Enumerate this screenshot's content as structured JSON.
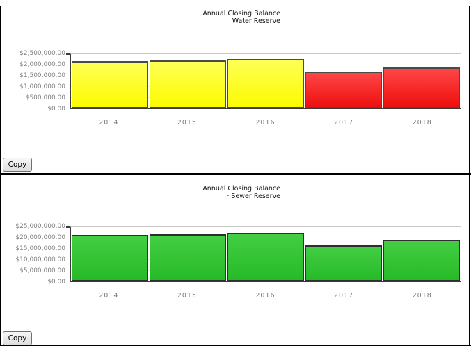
{
  "ui": {
    "copy_button_label": "Copy"
  },
  "palette": {
    "yellow": {
      "top": "#ffff55",
      "bottom": "#fbfb00",
      "border": "#4a4a4a"
    },
    "red": {
      "top": "#ff4646",
      "bottom": "#ee0f0f",
      "border": "#4a4a4a"
    },
    "green": {
      "top": "#43ce43",
      "bottom": "#27ba27",
      "border": "#2e2e2e"
    }
  },
  "frame_color": "#000000",
  "chart_data": [
    {
      "type": "bar",
      "title": "Annual Closing Balance",
      "subtitle": "Water Reserve",
      "categories": [
        "2014",
        "2015",
        "2016",
        "2017",
        "2018"
      ],
      "values": [
        2170000,
        2220000,
        2280000,
        1700000,
        1880000
      ],
      "bar_colors": [
        "yellow",
        "yellow",
        "yellow",
        "red",
        "red"
      ],
      "ylim": [
        0,
        2500000
      ],
      "y_ticks": [
        {
          "label": "$2,500,000.00",
          "value": 2500000
        },
        {
          "label": "$2,000,000.00",
          "value": 2000000
        },
        {
          "label": "$1,500,000.00",
          "value": 1500000
        },
        {
          "label": "$1,000,000.00",
          "value": 1000000
        },
        {
          "label": "$500,000.00",
          "value": 500000
        },
        {
          "label": "$0.00",
          "value": 0
        }
      ],
      "grid": true,
      "legend": "none",
      "xlabel": "",
      "ylabel": ""
    },
    {
      "type": "bar",
      "title": "Annual Closing Balance",
      "subtitle": "· Sewer Reserve",
      "categories": [
        "2014",
        "2015",
        "2016",
        "2017",
        "2018"
      ],
      "values": [
        21400000,
        21900000,
        22500000,
        16700000,
        19100000
      ],
      "bar_colors": [
        "green",
        "green",
        "green",
        "green",
        "green"
      ],
      "ylim": [
        0,
        25000000
      ],
      "y_ticks": [
        {
          "label": "$25,000,000.00",
          "value": 25000000
        },
        {
          "label": "$20,000,000.00",
          "value": 20000000
        },
        {
          "label": "$15,000,000.00",
          "value": 15000000
        },
        {
          "label": "$10,000,000.00",
          "value": 10000000
        },
        {
          "label": "$5,000,000.00",
          "value": 5000000
        },
        {
          "label": "$0.00",
          "value": 0
        }
      ],
      "grid": true,
      "legend": "none",
      "xlabel": "",
      "ylabel": ""
    }
  ]
}
